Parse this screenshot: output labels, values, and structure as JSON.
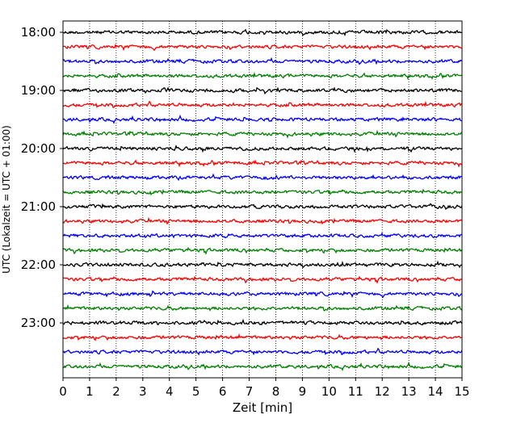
{
  "chart_data": {
    "type": "line",
    "title": "",
    "xlabel": "Zeit  [min]",
    "ylabel": "UTC (Lokalzeit = UTC + 01:00)",
    "xlim": [
      0,
      15
    ],
    "x_ticks": [
      "0",
      "1",
      "2",
      "3",
      "4",
      "5",
      "6",
      "7",
      "8",
      "9",
      "10",
      "11",
      "12",
      "13",
      "14",
      "15"
    ],
    "y_ticks": [
      "18:00",
      "19:00",
      "20:00",
      "21:00",
      "22:00",
      "23:00"
    ],
    "grid": "vertical dotted lines at each minute",
    "trace_interval_minutes": 15,
    "trace_start": "18:00",
    "trace_end": "23:45",
    "series": [
      {
        "start_times": [
          "18:00",
          "19:00",
          "20:00",
          "21:00",
          "22:00",
          "23:00"
        ],
        "color": "#000000"
      },
      {
        "start_times": [
          "18:15",
          "19:15",
          "20:15",
          "21:15",
          "22:15",
          "23:15"
        ],
        "color": "#ff0000"
      },
      {
        "start_times": [
          "18:30",
          "19:30",
          "20:30",
          "21:30",
          "22:30",
          "23:30"
        ],
        "color": "#0000ff"
      },
      {
        "start_times": [
          "18:45",
          "19:45",
          "20:45",
          "21:45",
          "22:45",
          "23:45"
        ],
        "color": "#008000"
      }
    ]
  }
}
